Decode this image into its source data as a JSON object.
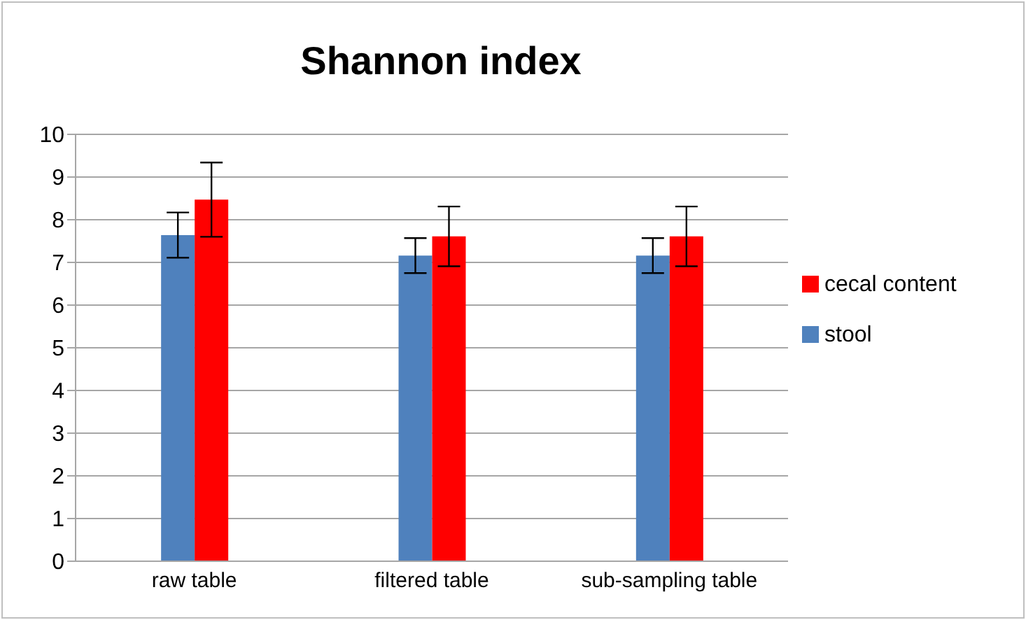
{
  "chart_data": {
    "type": "bar",
    "title": "Shannon index",
    "categories": [
      "raw table",
      "filtered table",
      "sub-sampling  table"
    ],
    "series": [
      {
        "name": "stool",
        "color": "#4f81bd",
        "values": [
          7.64,
          7.16,
          7.16
        ],
        "errors": [
          0.53,
          0.41,
          0.41
        ]
      },
      {
        "name": "cecal content",
        "color": "#ff0000",
        "values": [
          8.47,
          7.61,
          7.61
        ],
        "errors": [
          0.87,
          0.7,
          0.7
        ]
      }
    ],
    "ylim": [
      0,
      10
    ],
    "yticks": [
      0,
      1,
      2,
      3,
      4,
      5,
      6,
      7,
      8,
      9,
      10
    ],
    "grid": "y",
    "legend": "right"
  }
}
